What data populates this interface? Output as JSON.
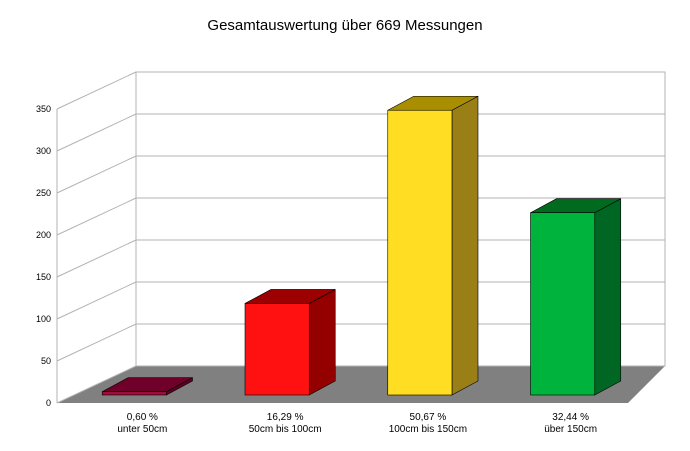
{
  "chart_data": {
    "type": "bar",
    "title": "Gesamtauswertung über 669 Messungen",
    "categories": [
      "unter 50cm",
      "50cm bis 100cm",
      "100cm bis 150cm",
      "über 150cm"
    ],
    "percent_labels": [
      "0,60 %",
      "16,29 %",
      "50,67 %",
      "32,44 %"
    ],
    "values": [
      4,
      109,
      339,
      217
    ],
    "yticks": [
      "0",
      "50",
      "100",
      "150",
      "200",
      "250",
      "300",
      "350"
    ],
    "ylim": [
      0,
      350
    ],
    "grid": true,
    "style": "3d",
    "colors": {
      "front": [
        "#9a0e3a",
        "#ff1111",
        "#ffdd22",
        "#00b33c"
      ],
      "top": [
        "#6e0029",
        "#9c0000",
        "#a88e00",
        "#006b1e"
      ],
      "side": [
        "#5e0022",
        "#940000",
        "#9a7f16",
        "#006623"
      ],
      "floor": "#808080",
      "wall": "#ffffff",
      "grid": "#b3b3b3"
    }
  }
}
